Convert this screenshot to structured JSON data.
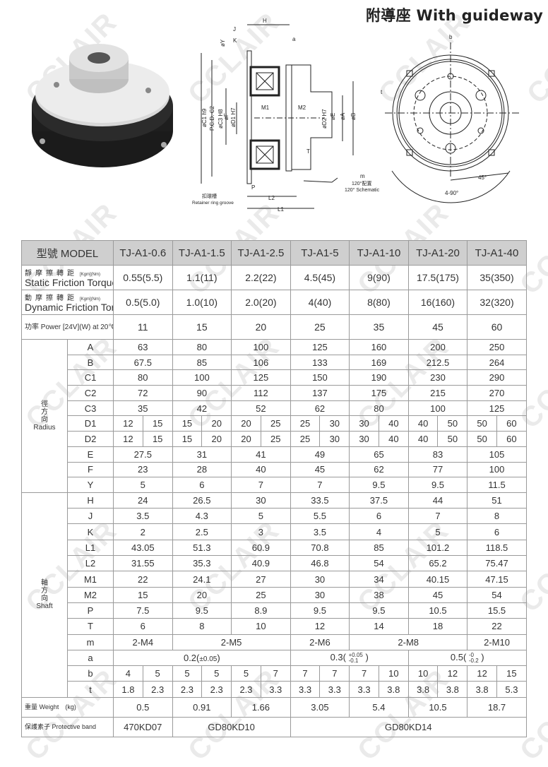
{
  "title": "附導座 With guideway",
  "watermark": {
    "text": "CCLAIR"
  },
  "drawing": {
    "labels": {
      "H": "H",
      "J": "J",
      "K": "K",
      "Y": "øY",
      "a": "a",
      "C1": "øC1 h9",
      "C2": "P.C.D. C2",
      "C3": "øC3 H8",
      "F": "øF",
      "D1": "øD1 H7",
      "M1": "M1",
      "M2": "M2",
      "D2": "øD2 H7",
      "E": "øE",
      "A": "øA",
      "B": "øB",
      "T": "T",
      "m": "m",
      "schematic_cn": "120°配置",
      "schematic_en": "120° Schematic",
      "P": "P",
      "L2": "L2",
      "L1": "L1",
      "groove_cn": "扣環槽",
      "groove_en": "Retainer ring groove",
      "b": "b",
      "t": "t",
      "angle45": "45°",
      "angle90": "4-90°"
    }
  },
  "table": {
    "header": {
      "label": "型號 MODEL",
      "models": [
        "TJ-A1-0.6",
        "TJ-A1-1.5",
        "TJ-A1-2.5",
        "TJ-A1-5",
        "TJ-A1-10",
        "TJ-A1-20",
        "TJ-A1-40"
      ]
    },
    "torque": [
      {
        "cn": "靜摩擦轉距",
        "en": "Static Friction Torque",
        "unit": "[Kgm](Nm)",
        "values": [
          "0.55(5.5)",
          "1.1(11)",
          "2.2(22)",
          "4.5(45)",
          "9(90)",
          "17.5(175)",
          "35(350)"
        ]
      },
      {
        "cn": "動摩擦轉距",
        "en": "Dynamic Friction Torque",
        "unit": "[Kgm](Nm)",
        "values": [
          "0.5(5.0)",
          "1.0(10)",
          "2.0(20)",
          "4(40)",
          "8(80)",
          "16(160)",
          "32(320)"
        ]
      }
    ],
    "power": {
      "label": "功率 Power [24V](W) at 20℃",
      "values": [
        "11",
        "15",
        "20",
        "25",
        "35",
        "45",
        "60"
      ]
    },
    "groups": [
      {
        "cn": "徑\n方\n向",
        "en": "Radius",
        "cls": "rad",
        "rows": [
          {
            "dim": "A",
            "values": [
              "63",
              "80",
              "100",
              "125",
              "160",
              "200",
              "250"
            ]
          },
          {
            "dim": "B",
            "values": [
              "67.5",
              "85",
              "106",
              "133",
              "169",
              "212.5",
              "264"
            ]
          },
          {
            "dim": "C1",
            "values": [
              "80",
              "100",
              "125",
              "150",
              "190",
              "230",
              "290"
            ]
          },
          {
            "dim": "C2",
            "values": [
              "72",
              "90",
              "112",
              "137",
              "175",
              "215",
              "270"
            ]
          },
          {
            "dim": "C3",
            "values": [
              "35",
              "42",
              "52",
              "62",
              "80",
              "100",
              "125"
            ]
          },
          {
            "dim": "D1",
            "values": [
              "12",
              "15",
              "15",
              "20",
              "20",
              "25",
              "25",
              "30",
              "30",
              "40",
              "40",
              "50",
              "50",
              "60"
            ]
          },
          {
            "dim": "D2",
            "values": [
              "12",
              "15",
              "15",
              "20",
              "20",
              "25",
              "25",
              "30",
              "30",
              "40",
              "40",
              "50",
              "50",
              "60"
            ]
          },
          {
            "dim": "E",
            "values": [
              "27.5",
              "31",
              "41",
              "49",
              "65",
              "83",
              "105"
            ]
          },
          {
            "dim": "F",
            "values": [
              "23",
              "28",
              "40",
              "45",
              "62",
              "77",
              "100"
            ]
          },
          {
            "dim": "Y",
            "values": [
              "5",
              "6",
              "7",
              "7",
              "9.5",
              "9.5",
              "11.5"
            ]
          }
        ]
      },
      {
        "cn": "軸\n方\n向",
        "en": "Shaft",
        "cls": "sh",
        "rows": [
          {
            "dim": "H",
            "values": [
              "24",
              "26.5",
              "30",
              "33.5",
              "37.5",
              "44",
              "51"
            ]
          },
          {
            "dim": "J",
            "values": [
              "3.5",
              "4.3",
              "5",
              "5.5",
              "6",
              "7",
              "8"
            ]
          },
          {
            "dim": "K",
            "values": [
              "2",
              "2.5",
              "3",
              "3.5",
              "4",
              "5",
              "6"
            ]
          },
          {
            "dim": "L1",
            "values": [
              "43.05",
              "51.3",
              "60.9",
              "70.8",
              "85",
              "101.2",
              "118.5"
            ]
          },
          {
            "dim": "L2",
            "values": [
              "31.55",
              "35.3",
              "40.9",
              "46.8",
              "54",
              "65.2",
              "75.47"
            ]
          },
          {
            "dim": "M1",
            "values": [
              "22",
              "24.1",
              "27",
              "30",
              "34",
              "40.15",
              "47.15"
            ]
          },
          {
            "dim": "M2",
            "values": [
              "15",
              "20",
              "25",
              "30",
              "38",
              "45",
              "54"
            ]
          },
          {
            "dim": "P",
            "values": [
              "7.5",
              "9.5",
              "8.9",
              "9.5",
              "9.5",
              "10.5",
              "15.5"
            ]
          },
          {
            "dim": "T",
            "values": [
              "6",
              "8",
              "10",
              "12",
              "14",
              "18",
              "22"
            ]
          },
          {
            "dim": "m",
            "values": [
              "2-M4",
              "2-M5",
              "2-M6",
              "2-M8",
              "2-M10"
            ],
            "spans": [
              2,
              4,
              2,
              4,
              2
            ]
          },
          {
            "dim": "a",
            "values": [
              {
                "v": "0.2",
                "tol": "±0.05"
              },
              {
                "v": "0.3",
                "up": "+0.05",
                "lo": "-0.1"
              },
              {
                "v": "0.5",
                "up": "-0",
                "lo": "-0.2"
              }
            ],
            "spans": [
              6,
              4,
              4
            ]
          },
          {
            "dim": "b",
            "values": [
              "4",
              "5",
              "5",
              "5",
              "5",
              "7",
              "7",
              "7",
              "7",
              "10",
              "10",
              "12",
              "12",
              "15"
            ]
          },
          {
            "dim": "t",
            "values": [
              "1.8",
              "2.3",
              "2.3",
              "2.3",
              "2.3",
              "3.3",
              "3.3",
              "3.3",
              "3.3",
              "3.8",
              "3.8",
              "3.8",
              "3.8",
              "5.3"
            ]
          }
        ]
      }
    ],
    "weight": {
      "label": "重量 Weight　(kg)",
      "values": [
        "0.5",
        "0.91",
        "1.66",
        "3.05",
        "5.4",
        "10.5",
        "18.7"
      ]
    },
    "band": {
      "label": "保護素子 Protective band",
      "values": [
        "470KD07",
        "GD80KD10",
        "GD80KD14"
      ],
      "spans": [
        2,
        4,
        8
      ]
    }
  }
}
